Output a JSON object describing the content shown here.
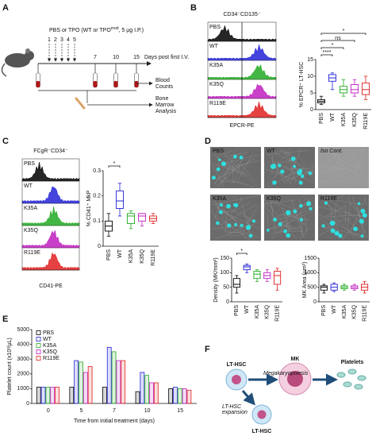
{
  "panel_labels": [
    "A",
    "B",
    "C",
    "D",
    "E",
    "F"
  ],
  "timeline": {
    "treatment": "PBS or TPO (WT or TPO",
    "treatment_sup": "mod",
    "treatment_end": ", 5 µg I.P.)",
    "days": [
      "1",
      "2",
      "3",
      "4",
      "5",
      "7",
      "10",
      "15"
    ],
    "days_label": "Days post first I.V.",
    "outcomes": [
      "Blood",
      "Counts",
      "Bone",
      "Marrow",
      "Analysis"
    ]
  },
  "histograms": [
    {
      "title": "CD34⁻CD135⁻",
      "x_label": "EPCR-PE",
      "rows": [
        "PBS",
        "WT",
        "K35A",
        "K35Q",
        "R119E"
      ],
      "colors": [
        "#000000",
        "#2323d6",
        "#22aa22",
        "#c01fc0",
        "#e02020"
      ]
    },
    {
      "title": "FCgR⁻CD34⁻",
      "x_label": "CD41-PE",
      "rows": [
        "PBS",
        "WT",
        "K35A",
        "K35Q",
        "R119E"
      ],
      "colors": [
        "#000000",
        "#2323d6",
        "#22aa22",
        "#c01fc0",
        "#e02020"
      ]
    }
  ],
  "micrographs": {
    "labels": [
      "PBS",
      "WT",
      "Iso Cont.",
      "K35A",
      "K35Q",
      "R119E"
    ],
    "colors": [
      "#ffffff",
      "#6a8cff",
      "#ffffff",
      "#33dd33",
      "#e060e0",
      "#ff4040"
    ]
  },
  "diagram": {
    "nodes": [
      "LT-HSC",
      "MK",
      "Platelets",
      "LT-HSC"
    ],
    "edges": [
      "Megakaryopoiesis",
      "LT-HSC",
      "expansion"
    ]
  },
  "chart_data": [
    {
      "type": "box",
      "y_label": "% EPCR⁺ LT-HSC",
      "categories": [
        "PBS",
        "WT",
        "K35A",
        "K35Q",
        "R119E"
      ],
      "colors": [
        "#000000",
        "#2323d6",
        "#22aa22",
        "#c01fc0",
        "#e02020"
      ],
      "boxes": [
        [
          1.5,
          2,
          2.5,
          3,
          4
        ],
        [
          6,
          8.5,
          9.5,
          10.5,
          11
        ],
        [
          4,
          5,
          6,
          7,
          9
        ],
        [
          4,
          5,
          6,
          7.5,
          9
        ],
        [
          3,
          4.5,
          6,
          8,
          10
        ]
      ],
      "ylim": [
        0,
        15
      ],
      "yticks": [
        0,
        5,
        10,
        15
      ],
      "annotations": [
        "****",
        "*",
        "ns",
        "*"
      ]
    },
    {
      "type": "box",
      "y_label": "% CD41⁺ MkP",
      "categories": [
        "PBS",
        "WT",
        "K35A",
        "K35Q",
        "R119E"
      ],
      "colors": [
        "#000000",
        "#2323d6",
        "#22aa22",
        "#c01fc0",
        "#e02020"
      ],
      "boxes": [
        [
          0.04,
          0.06,
          0.08,
          0.1,
          0.13
        ],
        [
          0.12,
          0.15,
          0.18,
          0.22,
          0.25
        ],
        [
          0.07,
          0.09,
          0.12,
          0.13,
          0.14
        ],
        [
          0.08,
          0.1,
          0.12,
          0.13,
          0.13
        ],
        [
          0.09,
          0.1,
          0.11,
          0.12,
          0.13
        ]
      ],
      "ylim": [
        0,
        0.3
      ],
      "yticks": [
        0,
        0.1,
        0.2,
        0.3
      ],
      "annotations": [
        "*"
      ]
    },
    {
      "type": "box",
      "y_label": "Density (MK/mm²)",
      "categories": [
        "PBS",
        "WT",
        "K35A",
        "K35Q",
        "R119E"
      ],
      "colors": [
        "#000000",
        "#2323d6",
        "#22aa22",
        "#c01fc0",
        "#e02020"
      ],
      "boxes": [
        [
          30,
          50,
          60,
          80,
          90
        ],
        [
          100,
          110,
          120,
          125,
          130
        ],
        [
          70,
          80,
          95,
          105,
          110
        ],
        [
          70,
          80,
          90,
          100,
          110
        ],
        [
          40,
          60,
          90,
          105,
          115
        ]
      ],
      "ylim": [
        0,
        150
      ],
      "yticks": [
        0,
        50,
        100,
        150
      ],
      "annotations": [
        "*"
      ]
    },
    {
      "type": "box",
      "y_label": "MK Area (µm²)",
      "categories": [
        "PBS",
        "WT",
        "K35A",
        "K35Q",
        "R119E"
      ],
      "colors": [
        "#000000",
        "#2323d6",
        "#22aa22",
        "#c01fc0",
        "#e02020"
      ],
      "boxes": [
        [
          300,
          400,
          500,
          550,
          600
        ],
        [
          350,
          400,
          500,
          600,
          650
        ],
        [
          400,
          450,
          500,
          550,
          600
        ],
        [
          400,
          450,
          500,
          550,
          600
        ],
        [
          300,
          400,
          500,
          600,
          700
        ]
      ],
      "ylim": [
        0,
        1500
      ],
      "yticks": [
        0,
        500,
        1000,
        1500
      ],
      "annotations": []
    },
    {
      "type": "bar",
      "y_label": "Platelet count (x10³/µL)",
      "x_label": "Time from initial treatment (days)",
      "categories": [
        "0",
        "5",
        "7",
        "10",
        "15"
      ],
      "series": [
        {
          "name": "PBS",
          "color": "#000000",
          "values": [
            1100,
            1100,
            1100,
            800,
            1000
          ]
        },
        {
          "name": "WT",
          "color": "#2323d6",
          "values": [
            1100,
            2900,
            3800,
            2100,
            1100
          ]
        },
        {
          "name": "K35A",
          "color": "#22aa22",
          "values": [
            1100,
            2800,
            3500,
            1900,
            1000
          ]
        },
        {
          "name": "K35Q",
          "color": "#c01fc0",
          "values": [
            1100,
            2100,
            2900,
            1400,
            1000
          ]
        },
        {
          "name": "R119E",
          "color": "#e02020",
          "values": [
            1100,
            2500,
            2900,
            1400,
            900
          ]
        }
      ],
      "ylim": [
        0,
        5000
      ],
      "yticks": [
        0,
        1000,
        2000,
        3000,
        4000,
        5000
      ]
    }
  ]
}
